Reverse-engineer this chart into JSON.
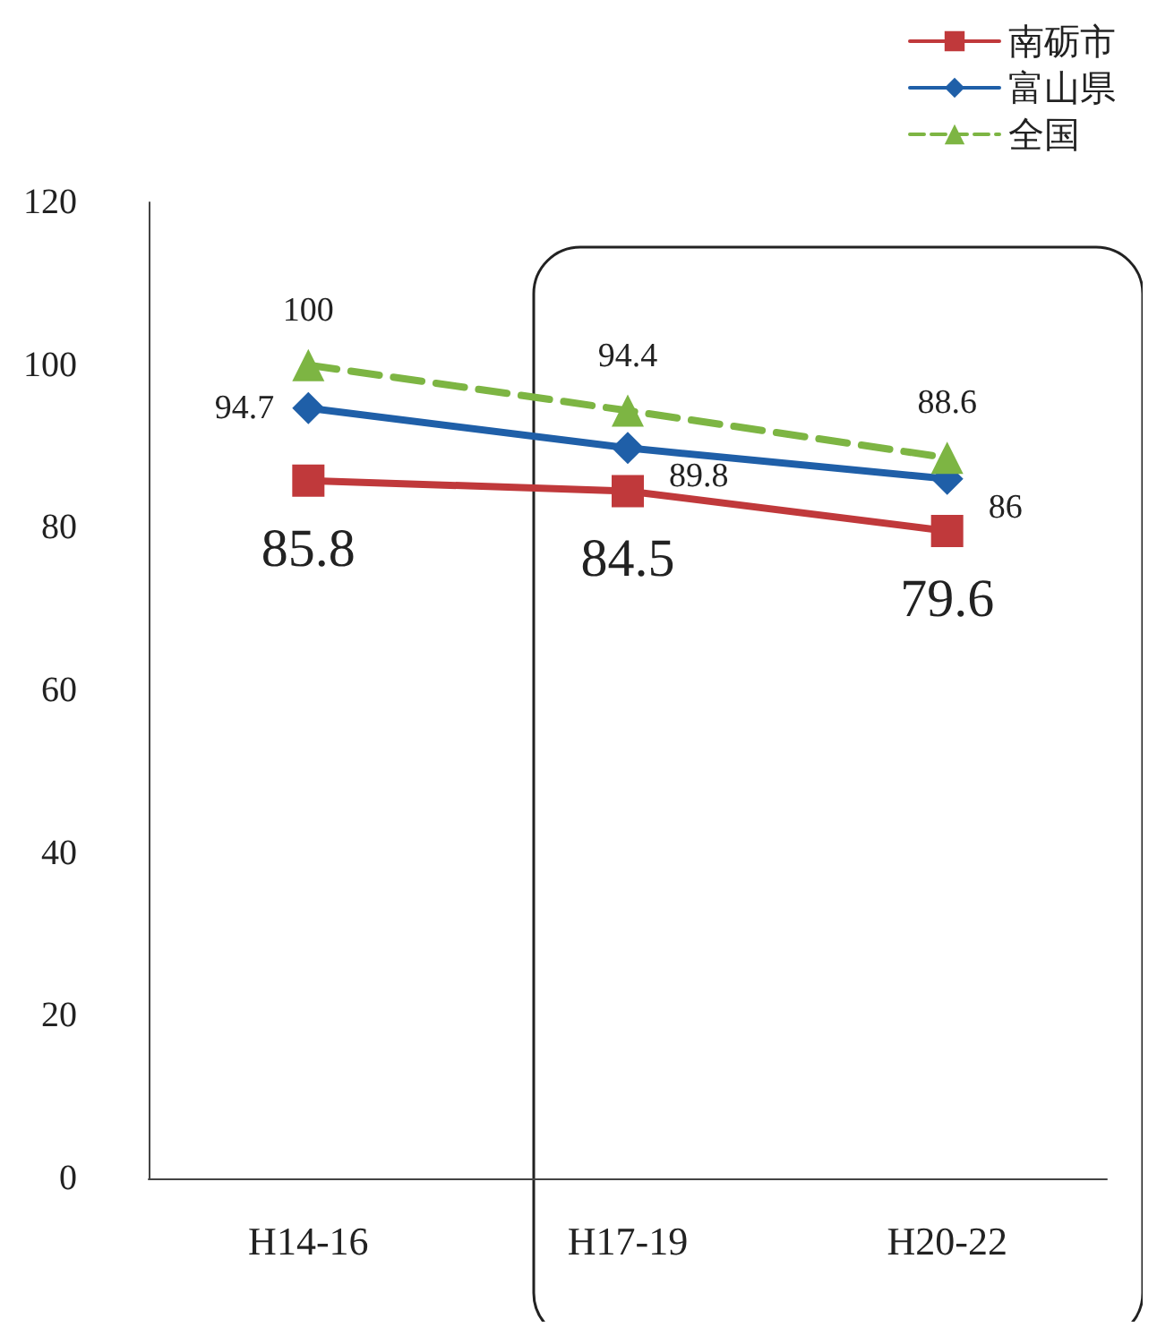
{
  "chart_data": {
    "type": "line",
    "categories": [
      "H14-16",
      "H17-19",
      "H20-22"
    ],
    "series": [
      {
        "name": "南砺市",
        "color": "#c0393b",
        "values": [
          85.8,
          84.5,
          79.6
        ],
        "marker": "square",
        "line_style": "solid"
      },
      {
        "name": "富山県",
        "color": "#1f5fa8",
        "values": [
          94.7,
          89.8,
          86
        ],
        "marker": "diamond",
        "line_style": "solid"
      },
      {
        "name": "全国",
        "color": "#7db543",
        "values": [
          100,
          94.4,
          88.6
        ],
        "marker": "triangle",
        "line_style": "dashed"
      }
    ],
    "ylim": [
      0,
      120
    ],
    "yticks": [
      0,
      20,
      40,
      60,
      80,
      100,
      120
    ],
    "grid": false,
    "legend": "top right",
    "data_labels": true
  }
}
